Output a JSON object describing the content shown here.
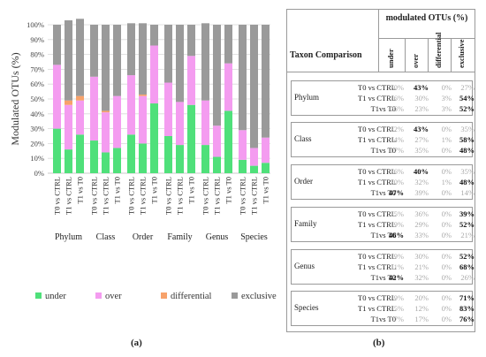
{
  "panel_labels": {
    "a": "(a)",
    "b": "(b)"
  },
  "chart_data": {
    "type": "bar",
    "stacked": true,
    "ylabel": "Modulated OTUs (%)",
    "ylim": [
      0,
      100
    ],
    "yticks": [
      "0%",
      "10%",
      "20%",
      "30%",
      "40%",
      "50%",
      "60%",
      "70%",
      "80%",
      "90%",
      "100%"
    ],
    "groups": [
      "Phylum",
      "Class",
      "Order",
      "Family",
      "Genus",
      "Species"
    ],
    "bar_labels": [
      "T0 vs CTRL",
      "T1 vs CTRL",
      "T1 vs T0"
    ],
    "series": [
      {
        "name": "under",
        "color": "#4fe07a",
        "values": [
          30,
          16,
          26,
          22,
          14,
          17,
          26,
          20,
          47,
          25,
          19,
          46,
          19,
          11,
          42,
          9,
          5,
          7
        ]
      },
      {
        "name": "over",
        "color": "#f49cf0",
        "values": [
          43,
          30,
          23,
          43,
          27,
          35,
          40,
          32,
          39,
          36,
          29,
          33,
          30,
          21,
          32,
          20,
          12,
          17
        ]
      },
      {
        "name": "differential",
        "color": "#f7a26b",
        "values": [
          0,
          3,
          3,
          0,
          1,
          0,
          0,
          1,
          0,
          0,
          0,
          0,
          0,
          0,
          0,
          0,
          0,
          0
        ]
      },
      {
        "name": "exclusive",
        "color": "#9a9a9a",
        "values": [
          27,
          54,
          52,
          35,
          58,
          48,
          35,
          48,
          14,
          39,
          52,
          21,
          52,
          68,
          26,
          71,
          83,
          76
        ]
      }
    ],
    "legend_position": "bottom"
  },
  "table": {
    "header_top": "modulated OTUs (%)",
    "header_left": "Taxon Comparison",
    "columns": [
      "under",
      "over",
      "differential",
      "exclusive"
    ],
    "groups": [
      {
        "name": "Phylum",
        "rows": [
          {
            "comparison": "T0 vs CTRL",
            "values": [
              "30%",
              "43%",
              "0%",
              "27%"
            ],
            "bold": [
              false,
              true,
              false,
              false
            ]
          },
          {
            "comparison": "T1 vs CTRL",
            "values": [
              "16%",
              "30%",
              "3%",
              "54%"
            ],
            "bold": [
              false,
              false,
              false,
              true
            ]
          },
          {
            "comparison": "T1vs T0",
            "values": [
              "26%",
              "23%",
              "3%",
              "52%"
            ],
            "bold": [
              false,
              false,
              false,
              true
            ]
          }
        ]
      },
      {
        "name": "Class",
        "rows": [
          {
            "comparison": "T0 vs CTRL",
            "values": [
              "22%",
              "43%",
              "0%",
              "35%"
            ],
            "bold": [
              false,
              true,
              false,
              false
            ]
          },
          {
            "comparison": "T1 vs CTRL",
            "values": [
              "14%",
              "27%",
              "1%",
              "58%"
            ],
            "bold": [
              false,
              false,
              false,
              true
            ]
          },
          {
            "comparison": "T1vs T0",
            "values": [
              "17%",
              "35%",
              "0%",
              "48%"
            ],
            "bold": [
              false,
              false,
              false,
              true
            ]
          }
        ]
      },
      {
        "name": "Order",
        "rows": [
          {
            "comparison": "T0 vs CTRL",
            "values": [
              "26%",
              "40%",
              "0%",
              "35%"
            ],
            "bold": [
              false,
              true,
              false,
              false
            ]
          },
          {
            "comparison": "T1 vs CTRL",
            "values": [
              "20%",
              "32%",
              "1%",
              "48%"
            ],
            "bold": [
              false,
              false,
              false,
              true
            ]
          },
          {
            "comparison": "T1vs T0",
            "values": [
              "47%",
              "39%",
              "0%",
              "14%"
            ],
            "bold": [
              true,
              false,
              false,
              false
            ]
          }
        ]
      },
      {
        "name": "Family",
        "rows": [
          {
            "comparison": "T0 vs CTRL",
            "values": [
              "25%",
              "36%",
              "0%",
              "39%"
            ],
            "bold": [
              false,
              false,
              false,
              true
            ]
          },
          {
            "comparison": "T1 vs CTRL",
            "values": [
              "19%",
              "29%",
              "0%",
              "52%"
            ],
            "bold": [
              false,
              false,
              false,
              true
            ]
          },
          {
            "comparison": "T1vs T0",
            "values": [
              "46%",
              "33%",
              "0%",
              "21%"
            ],
            "bold": [
              true,
              false,
              false,
              false
            ]
          }
        ]
      },
      {
        "name": "Genus",
        "rows": [
          {
            "comparison": "T0 vs CTRL",
            "values": [
              "19%",
              "30%",
              "0%",
              "52%"
            ],
            "bold": [
              false,
              false,
              false,
              true
            ]
          },
          {
            "comparison": "T1 vs CTRL",
            "values": [
              "11%",
              "21%",
              "0%",
              "68%"
            ],
            "bold": [
              false,
              false,
              false,
              true
            ]
          },
          {
            "comparison": "T1vs T0",
            "values": [
              "42%",
              "32%",
              "0%",
              "26%"
            ],
            "bold": [
              true,
              false,
              false,
              false
            ]
          }
        ]
      },
      {
        "name": "Species",
        "rows": [
          {
            "comparison": "T0 vs CTRL",
            "values": [
              "9%",
              "20%",
              "0%",
              "71%"
            ],
            "bold": [
              false,
              false,
              false,
              true
            ]
          },
          {
            "comparison": "T1 vs CTRL",
            "values": [
              "5%",
              "12%",
              "0%",
              "83%"
            ],
            "bold": [
              false,
              false,
              false,
              true
            ]
          },
          {
            "comparison": "T1vs T0",
            "values": [
              "7%",
              "17%",
              "0%",
              "76%"
            ],
            "bold": [
              false,
              false,
              false,
              true
            ]
          }
        ]
      }
    ]
  }
}
